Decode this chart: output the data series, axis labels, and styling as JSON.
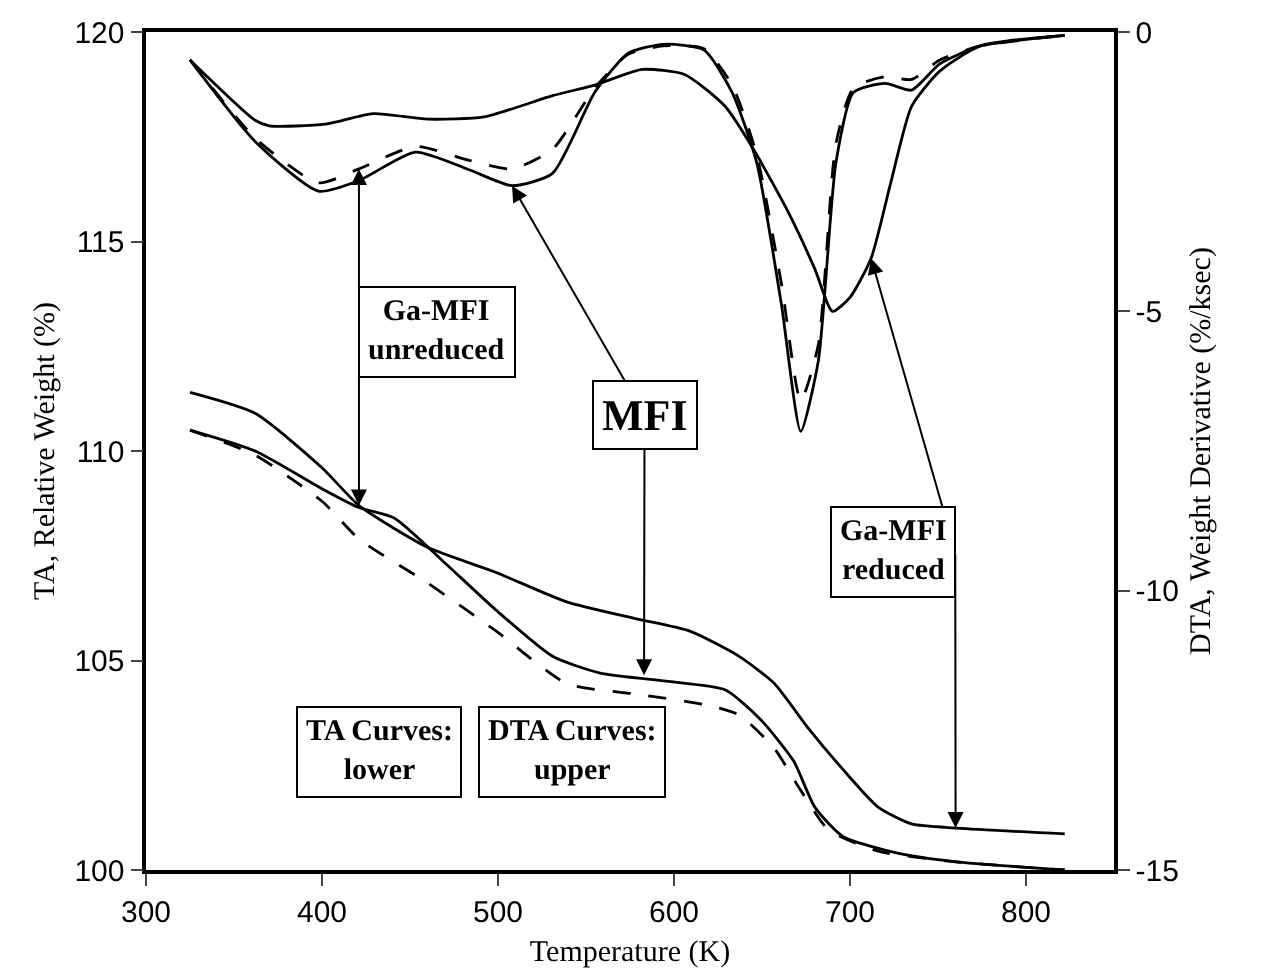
{
  "chart_data": {
    "type": "line",
    "xlabel": "Temperature (K)",
    "ylabel": "TA, Relative Weight (%)",
    "y2label": "DTA, Weight Derivative (%/ksec)",
    "xlim": [
      300,
      850
    ],
    "xticks": [
      300,
      400,
      500,
      600,
      700,
      800
    ],
    "ylim": [
      100,
      120
    ],
    "yticks": [
      100,
      105,
      110,
      115,
      120
    ],
    "y2lim": [
      -15,
      0
    ],
    "y2ticks": [
      -15,
      -10,
      -5,
      0
    ],
    "grid": false,
    "marker": "none",
    "series": [
      {
        "color": "#000000",
        "line_style": "solid",
        "x": [
          325,
          362,
          400,
          421,
          460,
          499,
          539,
          578,
          609,
          637,
          657,
          676,
          696,
          716,
          735,
          761,
          822
        ],
        "values": [
          111.4,
          110.9,
          109.6,
          108.7,
          107.7,
          107.1,
          106.4,
          106.0,
          105.7,
          105.1,
          104.45,
          103.4,
          102.4,
          101.5,
          101.1,
          101.0,
          100.86
        ]
      },
      {
        "color": "#000000",
        "line_style": "solid",
        "x": [
          325,
          362,
          400,
          421,
          441,
          468,
          499,
          531,
          558,
          597,
          629,
          649,
          668,
          680,
          696,
          727,
          759,
          822
        ],
        "values": [
          110.5,
          110.0,
          109.1,
          108.65,
          108.4,
          107.4,
          106.2,
          105.1,
          104.7,
          104.5,
          104.3,
          103.6,
          102.6,
          101.5,
          100.8,
          100.4,
          100.2,
          100.0
        ]
      },
      {
        "color": "#000000",
        "line_style": "dashed",
        "x": [
          325,
          362,
          400,
          421,
          460,
          499,
          539,
          578,
          617,
          637,
          657,
          672,
          688,
          716,
          759,
          822
        ],
        "values": [
          110.5,
          109.9,
          108.8,
          107.9,
          106.85,
          105.7,
          104.45,
          104.2,
          103.95,
          103.7,
          102.9,
          101.9,
          100.95,
          100.45,
          100.2,
          100.0
        ]
      },
      {
        "color": "#000000",
        "line_style": "solid",
        "axis": "y2",
        "x": [
          325,
          362,
          370,
          402,
          429,
          460,
          492,
          531,
          555,
          582,
          606,
          629,
          645,
          665,
          680,
          690,
          700,
          712,
          723,
          735,
          751,
          774,
          822
        ],
        "values": [
          -0.5,
          -1.58,
          -1.68,
          -1.65,
          -1.46,
          -1.56,
          -1.52,
          -1.14,
          -0.95,
          -0.67,
          -0.76,
          -1.33,
          -2.09,
          -3.23,
          -4.24,
          -5.0,
          -4.75,
          -4.05,
          -2.72,
          -1.33,
          -0.7,
          -0.25,
          -0.06
        ]
      },
      {
        "color": "#000000",
        "line_style": "solid",
        "axis": "y2",
        "x": [
          325,
          362,
          398,
          421,
          453,
          484,
          508,
          531,
          555,
          574,
          594,
          617,
          633,
          647,
          661,
          672,
          682,
          692,
          702,
          720,
          735,
          751,
          774,
          822
        ],
        "values": [
          -0.5,
          -1.96,
          -2.85,
          -2.66,
          -2.15,
          -2.47,
          -2.75,
          -2.53,
          -1.08,
          -0.38,
          -0.22,
          -0.32,
          -1.08,
          -2.34,
          -4.87,
          -7.15,
          -5.89,
          -2.34,
          -1.08,
          -0.92,
          -1.04,
          -0.57,
          -0.25,
          -0.06
        ]
      },
      {
        "color": "#000000",
        "line_style": "dashed",
        "axis": "y2",
        "x": [
          325,
          362,
          398,
          421,
          453,
          484,
          508,
          531,
          555,
          574,
          594,
          617,
          633,
          647,
          661,
          672,
          682,
          692,
          702,
          720,
          735,
          751,
          774,
          822
        ],
        "values": [
          -0.5,
          -1.9,
          -2.7,
          -2.45,
          -2.05,
          -2.3,
          -2.45,
          -2.1,
          -1.0,
          -0.4,
          -0.25,
          -0.3,
          -0.95,
          -2.2,
          -4.5,
          -6.6,
          -5.6,
          -2.0,
          -1.0,
          -0.8,
          -0.85,
          -0.5,
          -0.25,
          -0.06
        ]
      }
    ],
    "annotations": [
      {
        "text": "Ga-MFI\nunreduced",
        "x": 421,
        "y": 108.7
      },
      {
        "text": "MFI",
        "x": 583,
        "y": 104.65
      },
      {
        "text": "Ga-MFI\nreduced",
        "x": 760,
        "y": 101.0
      },
      "TA Curves:\nlower",
      "DTA Curves:\nupper"
    ]
  }
}
